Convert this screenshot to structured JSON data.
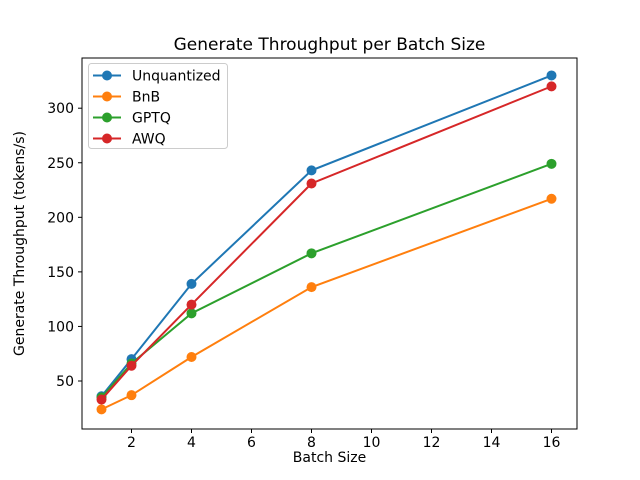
{
  "chart_data": {
    "type": "line",
    "title": "Generate Throughput per Batch Size",
    "xlabel": "Batch Size",
    "ylabel": "Generate Throughput (tokens/s)",
    "x": [
      1,
      2,
      4,
      8,
      16
    ],
    "series": [
      {
        "name": "Unquantized",
        "color": "#1f77b4",
        "values": [
          36,
          70,
          139,
          243,
          330
        ]
      },
      {
        "name": "BnB",
        "color": "#ff7f0e",
        "values": [
          24,
          37,
          72,
          136,
          217
        ]
      },
      {
        "name": "GPTQ",
        "color": "#2ca02c",
        "values": [
          35,
          66,
          112,
          167,
          249
        ]
      },
      {
        "name": "AWQ",
        "color": "#d62728",
        "values": [
          33,
          64,
          120,
          231,
          320
        ]
      }
    ],
    "xticks": [
      2,
      4,
      6,
      8,
      10,
      12,
      14,
      16
    ],
    "yticks": [
      50,
      100,
      150,
      200,
      250,
      300
    ],
    "xlim": [
      0.35,
      16.85
    ],
    "ylim": [
      6,
      346
    ],
    "grid": false,
    "legend_position": "upper left",
    "marker": "o",
    "colors": {
      "spine": "#000000",
      "background": "#ffffff",
      "legend_border": "#cccccc"
    }
  }
}
